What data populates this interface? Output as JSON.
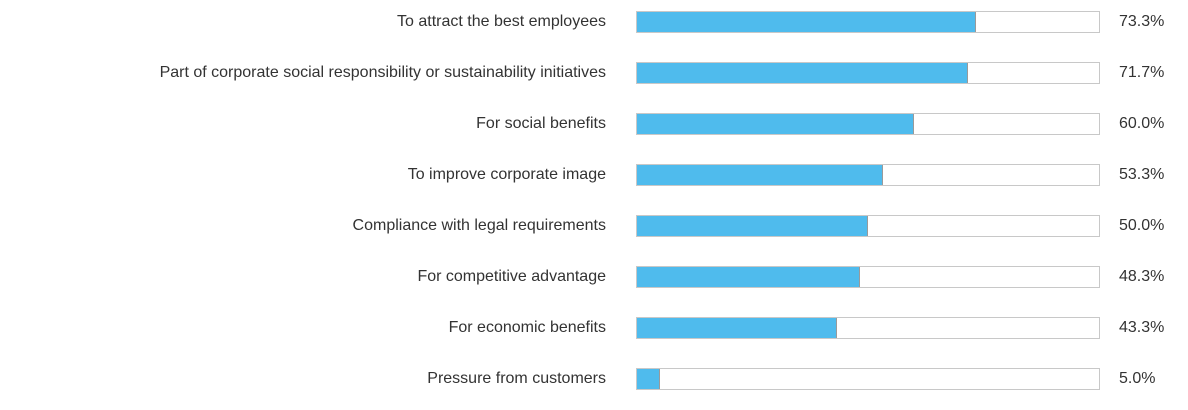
{
  "colors": {
    "bar_fill": "#4fbbed",
    "track_border": "#c8c8c8",
    "text": "#333333"
  },
  "chart_data": {
    "type": "bar",
    "orientation": "horizontal",
    "title": "",
    "xlabel": "",
    "ylabel": "",
    "xlim": [
      0,
      100
    ],
    "grid": false,
    "categories": [
      "To attract the best employees",
      "Part of corporate social responsibility or sustainability initiatives",
      "For social benefits",
      "To improve corporate image",
      "Compliance with legal requirements",
      "For competitive advantage",
      "For economic benefits",
      "Pressure from customers"
    ],
    "values": [
      73.3,
      71.7,
      60.0,
      53.3,
      50.0,
      48.3,
      43.3,
      5.0
    ],
    "value_labels": [
      "73.3%",
      "71.7%",
      "60.0%",
      "53.3%",
      "50.0%",
      "48.3%",
      "43.3%",
      "5.0%"
    ]
  }
}
